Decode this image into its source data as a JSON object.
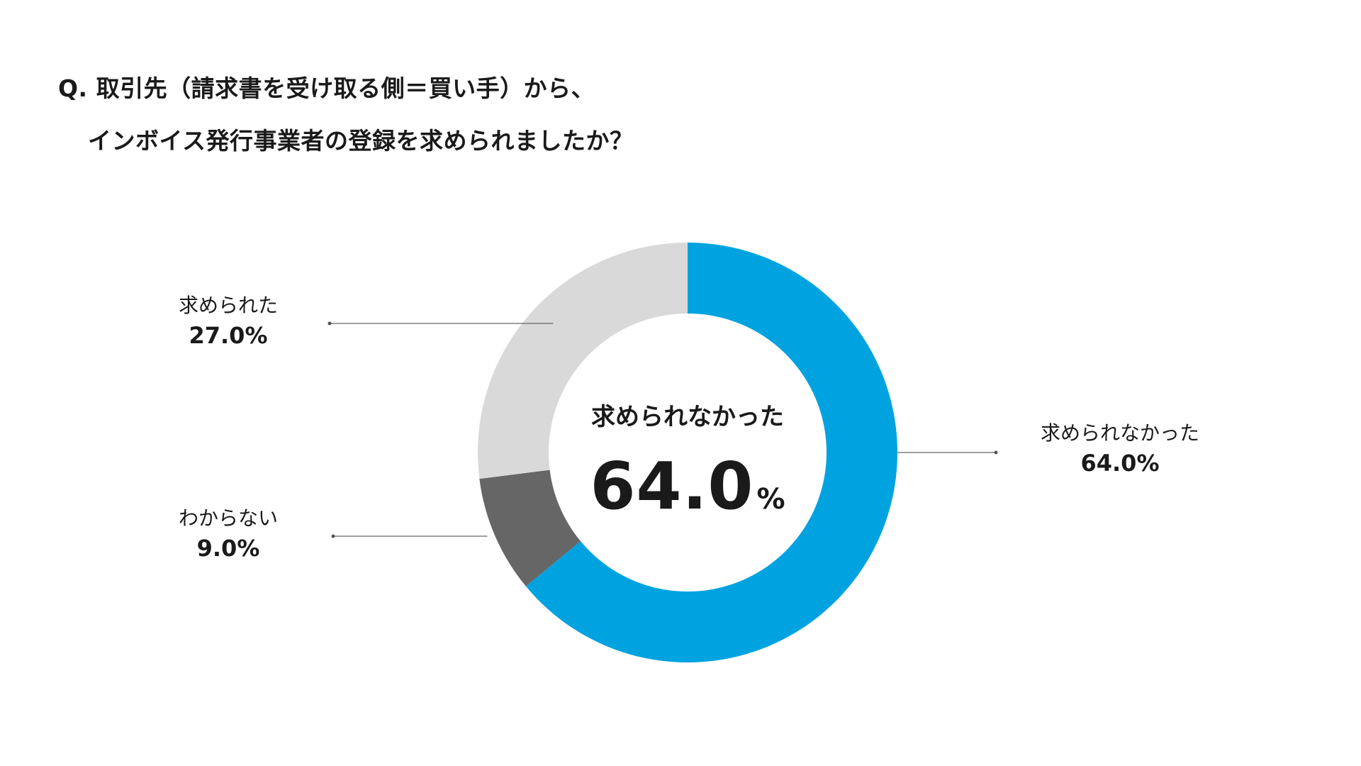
{
  "question": {
    "line1": "Q. 取引先（請求書を受け取る側＝買い手）から、",
    "line2": "インボイス発行事業者の登録を求められましたか？"
  },
  "center": {
    "label": "求められなかった",
    "value": "64.0",
    "unit": "%"
  },
  "chart_data": {
    "type": "pie",
    "donut": true,
    "start": "12 o'clock",
    "direction": "clockwise",
    "categories": [
      "求められなかった",
      "わからない",
      "求められた"
    ],
    "values": [
      64.0,
      9.0,
      27.0
    ],
    "value_labels": [
      "64.0%",
      "9.0%",
      "27.0%"
    ],
    "colors": [
      "#00a3e0",
      "#666666",
      "#d9d9d9"
    ],
    "title": "",
    "legend": "callouts"
  }
}
